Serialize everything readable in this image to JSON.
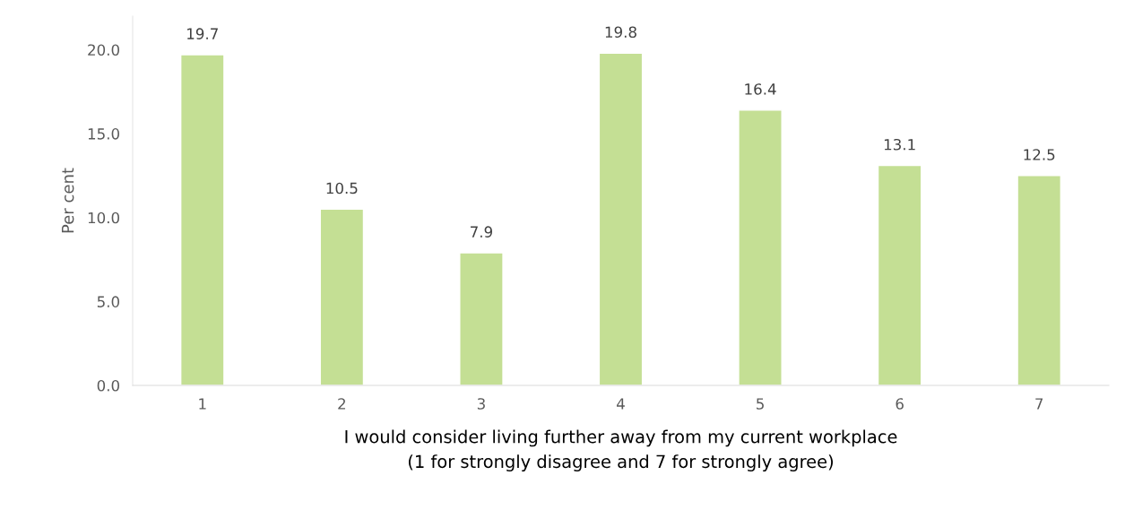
{
  "chart_data": {
    "type": "bar",
    "categories": [
      "1",
      "2",
      "3",
      "4",
      "5",
      "6",
      "7"
    ],
    "values": [
      19.7,
      10.5,
      7.9,
      19.8,
      16.4,
      13.1,
      12.5
    ],
    "color": "#c4df94",
    "xlabel": "I would consider living further away from my current workplace\n(1 for strongly disagree and 7 for strongly agree)",
    "ylabel": "Per cent",
    "ylim": [
      0,
      22
    ],
    "yticks": [
      {
        "value": 0,
        "label": "0.0"
      },
      {
        "value": 5,
        "label": "5.0"
      },
      {
        "value": 10,
        "label": "10.0"
      },
      {
        "value": 15,
        "label": "15.0"
      },
      {
        "value": 20,
        "label": "20.0"
      }
    ],
    "value_labels": [
      "19.7",
      "10.5",
      "7.9",
      "19.8",
      "16.4",
      "13.1",
      "12.5"
    ],
    "grid": false,
    "legend": false
  }
}
